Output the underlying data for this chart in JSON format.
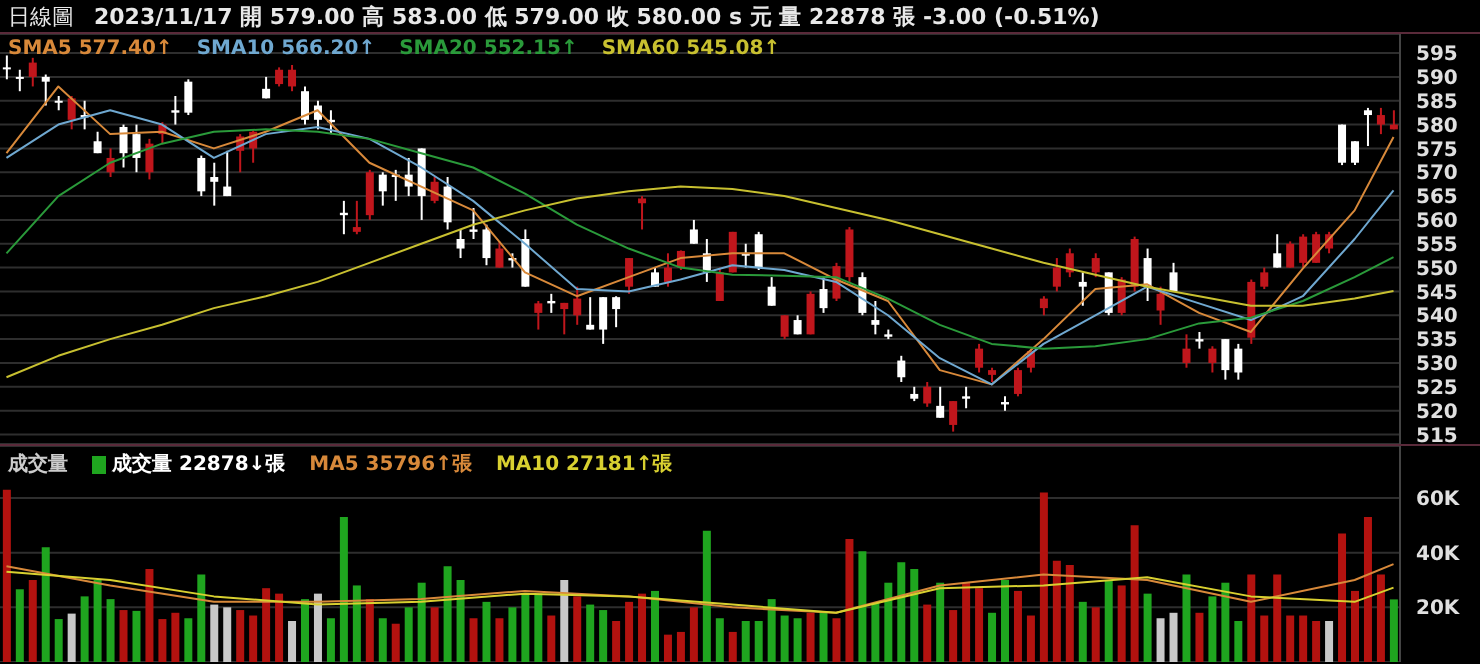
{
  "chart_data": [
    {
      "type": "candlestick",
      "title": "日線圖",
      "subtitle": "2023/11/17 開 579.00 高 583.00 低 579.00 收 580.00 s 元 量 22878 張 -3.00 (-0.51%)",
      "categories": [
        null,
        null,
        null,
        null,
        null,
        null,
        null,
        null,
        null,
        null,
        null,
        null,
        null,
        null,
        null,
        null,
        null,
        null,
        null,
        null,
        null,
        null,
        null,
        null,
        null,
        null,
        null,
        null,
        null,
        null,
        null,
        null,
        null,
        null,
        null,
        null,
        null,
        null,
        null,
        null,
        null,
        null,
        null,
        null,
        null,
        null,
        null,
        null,
        null,
        null,
        null,
        null,
        null,
        null,
        null,
        null,
        null,
        null,
        null,
        null,
        null,
        null,
        null,
        null,
        null,
        null,
        null,
        null,
        null,
        null,
        null,
        null,
        null,
        null,
        null,
        null,
        null,
        null,
        null,
        null,
        null,
        null,
        null,
        null,
        null,
        null,
        null,
        null,
        null,
        null,
        null,
        null,
        null,
        null,
        null,
        null,
        null,
        null,
        null,
        null,
        null,
        null,
        null,
        null,
        null,
        null,
        null,
        null
      ],
      "ohlc": [
        [
          592,
          594.5,
          589.5,
          592
        ],
        [
          590,
          591.5,
          587,
          590
        ],
        [
          590,
          594,
          588,
          593
        ],
        [
          590,
          590.5,
          584,
          589
        ],
        [
          585,
          586,
          583,
          585
        ],
        [
          581,
          586,
          579,
          585.5
        ],
        [
          582,
          585,
          579,
          581.5
        ],
        [
          576.5,
          578.5,
          574,
          574
        ],
        [
          570,
          575,
          569,
          573
        ],
        [
          579.5,
          580,
          571,
          574
        ],
        [
          578,
          580,
          570,
          573
        ],
        [
          570,
          577,
          568.5,
          576
        ],
        [
          578,
          580.5,
          576,
          580
        ],
        [
          583,
          586,
          580,
          582.5
        ],
        [
          589,
          589.5,
          582,
          582.5
        ],
        [
          573,
          573.5,
          565,
          566
        ],
        [
          569,
          572,
          563,
          568
        ],
        [
          567,
          574.5,
          565,
          565
        ],
        [
          574.5,
          578,
          570,
          577.5
        ],
        [
          575,
          579,
          572,
          578.5
        ],
        [
          587.5,
          590,
          585.5,
          585.5
        ],
        [
          588.5,
          592,
          588,
          591.5
        ],
        [
          588,
          592.5,
          587,
          591.5
        ],
        [
          587,
          588,
          580,
          581
        ],
        [
          584,
          585,
          579,
          581
        ],
        [
          581,
          583,
          578,
          580.5
        ],
        [
          561.5,
          564,
          557,
          561
        ],
        [
          557.5,
          564,
          557,
          558.5
        ],
        [
          561,
          570.5,
          560,
          570
        ],
        [
          569.5,
          570,
          563,
          566
        ],
        [
          569.5,
          570.5,
          564,
          569
        ],
        [
          569.5,
          573,
          565,
          567
        ],
        [
          575,
          575,
          560,
          565
        ],
        [
          564,
          569,
          563.5,
          568
        ],
        [
          567,
          569,
          558,
          559.5
        ],
        [
          556,
          558,
          552,
          554
        ],
        [
          558,
          562.5,
          556,
          557.5
        ],
        [
          558,
          559,
          550.5,
          552
        ],
        [
          550,
          555.5,
          550,
          554
        ],
        [
          552,
          553,
          550,
          551.5
        ],
        [
          556,
          558,
          546,
          546
        ],
        [
          540.5,
          543,
          537,
          542.5
        ],
        [
          543,
          544.5,
          540.5,
          542.5
        ],
        [
          541.3,
          542.6,
          536,
          542.6
        ],
        [
          540,
          546,
          538,
          543.5
        ],
        [
          538,
          543.8,
          537,
          537
        ],
        [
          543.8,
          543.8,
          534,
          537
        ],
        [
          543.8,
          544,
          537.5,
          541.3
        ],
        [
          546,
          552,
          544.5,
          552
        ],
        [
          563.5,
          565,
          558,
          564.5
        ],
        [
          549,
          550,
          546,
          546
        ],
        [
          547,
          553,
          546,
          550
        ],
        [
          550,
          553.6,
          549.5,
          553.5
        ],
        [
          558,
          560,
          555,
          555
        ],
        [
          553,
          556,
          547,
          549
        ],
        [
          543,
          550,
          543,
          549
        ],
        [
          549,
          557.5,
          549,
          557.5
        ],
        [
          553,
          555,
          550,
          552.5
        ],
        [
          557,
          557.5,
          549.5,
          550
        ],
        [
          546,
          548,
          542,
          542
        ],
        [
          535.5,
          540,
          535,
          540
        ],
        [
          539,
          540,
          536,
          536
        ],
        [
          536,
          545,
          536,
          544.5
        ],
        [
          545.5,
          548,
          540.5,
          541.5
        ],
        [
          543.5,
          551,
          543,
          550.3
        ],
        [
          548,
          558.5,
          547,
          558
        ],
        [
          548,
          549,
          540,
          540.5
        ],
        [
          539,
          543,
          536,
          538
        ],
        [
          536,
          537,
          535,
          535.5
        ],
        [
          530.5,
          531.5,
          526,
          527
        ],
        [
          523.5,
          525,
          522,
          522.5
        ],
        [
          521.5,
          526,
          520.8,
          525
        ],
        [
          521,
          525,
          518.5,
          518.5
        ],
        [
          517,
          522,
          515.6,
          522
        ],
        [
          523,
          525,
          520.5,
          522.5
        ],
        [
          529,
          534,
          528,
          533
        ],
        [
          527.5,
          529,
          526,
          528.5
        ],
        [
          521.8,
          523,
          520,
          521.3
        ],
        [
          523.5,
          529,
          523,
          528.5
        ],
        [
          529,
          533,
          528,
          532.5
        ],
        [
          541.5,
          544,
          540,
          543.5
        ],
        [
          546,
          552,
          545,
          550
        ],
        [
          549,
          554,
          548,
          553
        ],
        [
          547,
          549,
          542,
          546
        ],
        [
          549,
          553,
          548,
          552
        ],
        [
          549,
          549,
          540,
          540.5
        ],
        [
          540.5,
          548,
          540,
          547.5
        ],
        [
          546,
          556.5,
          545,
          556
        ],
        [
          552,
          554,
          543,
          546
        ],
        [
          541,
          546,
          538,
          544.5
        ],
        [
          549,
          551,
          545,
          545
        ],
        [
          530,
          536,
          529,
          533
        ],
        [
          535,
          536.5,
          533,
          534.5
        ],
        [
          530,
          533.5,
          528,
          533
        ],
        [
          535,
          535,
          526.5,
          528.5
        ],
        [
          533,
          534,
          526.5,
          528
        ],
        [
          535.3,
          547.5,
          534,
          547
        ],
        [
          546,
          550,
          545.5,
          549
        ],
        [
          553,
          557,
          550,
          550
        ],
        [
          550,
          555.5,
          550,
          555
        ],
        [
          551,
          557,
          550,
          556.5
        ],
        [
          551,
          557.5,
          551,
          557
        ],
        [
          554,
          557.5,
          553,
          557
        ],
        [
          580,
          580,
          571.5,
          572
        ],
        [
          576.5,
          576.5,
          571.5,
          572
        ],
        [
          583,
          583.5,
          575.5,
          582
        ],
        [
          580,
          583.5,
          578,
          582
        ],
        [
          579,
          583,
          579,
          580
        ]
      ],
      "colors": [
        "#ffffff",
        "#ffffff",
        "#c0161c",
        "#ffffff",
        "#ffffff",
        "#c0161c",
        "#ffffff",
        "#ffffff",
        "#c0161c",
        "#ffffff",
        "#ffffff",
        "#c0161c",
        "#c0161c",
        "#ffffff",
        "#ffffff",
        "#ffffff",
        "#ffffff",
        "#ffffff",
        "#c0161c",
        "#c0161c",
        "#ffffff",
        "#c0161c",
        "#c0161c",
        "#ffffff",
        "#ffffff",
        "#ffffff",
        "#ffffff",
        "#c0161c",
        "#c0161c",
        "#ffffff",
        "#ffffff",
        "#ffffff",
        "#ffffff",
        "#c0161c",
        "#ffffff",
        "#ffffff",
        "#ffffff",
        "#ffffff",
        "#c0161c",
        "#ffffff",
        "#ffffff",
        "#c0161c",
        "#ffffff",
        "#c0161c",
        "#c0161c",
        "#ffffff",
        "#ffffff",
        "#ffffff",
        "#c0161c",
        "#c0161c",
        "#ffffff",
        "#c0161c",
        "#c0161c",
        "#ffffff",
        "#ffffff",
        "#c0161c",
        "#c0161c",
        "#ffffff",
        "#ffffff",
        "#ffffff",
        "#c0161c",
        "#ffffff",
        "#c0161c",
        "#ffffff",
        "#c0161c",
        "#c0161c",
        "#ffffff",
        "#ffffff",
        "#ffffff",
        "#ffffff",
        "#ffffff",
        "#c0161c",
        "#ffffff",
        "#c0161c",
        "#ffffff",
        "#c0161c",
        "#c0161c",
        "#ffffff",
        "#c0161c",
        "#c0161c",
        "#c0161c",
        "#c0161c",
        "#c0161c",
        "#ffffff",
        "#c0161c",
        "#ffffff",
        "#c0161c",
        "#c0161c",
        "#ffffff",
        "#c0161c",
        "#ffffff",
        "#c0161c",
        "#ffffff",
        "#c0161c",
        "#ffffff",
        "#ffffff",
        "#c0161c",
        "#c0161c",
        "#ffffff",
        "#c0161c",
        "#c0161c",
        "#c0161c",
        "#c0161c",
        "#ffffff",
        "#ffffff",
        "#ffffff",
        "#c0161c",
        "#c0161c"
      ],
      "series": [
        {
          "type": "line",
          "name": "SMA5 577.40↑",
          "color": "#d8893a",
          "values": [
            574,
            null,
            null,
            null,
            588,
            null,
            null,
            null,
            578,
            null,
            null,
            null,
            578.5,
            null,
            null,
            null,
            575,
            null,
            null,
            null,
            578.5,
            null,
            null,
            null,
            583,
            null,
            null,
            null,
            572,
            null,
            null,
            null,
            567,
            null,
            null,
            null,
            562,
            null,
            null,
            null,
            549,
            null,
            null,
            null,
            544,
            null,
            null,
            null,
            548,
            null,
            null,
            null,
            552,
            null,
            null,
            null,
            553,
            null,
            null,
            null,
            553,
            null,
            null,
            null,
            547.5,
            null,
            null,
            null,
            543,
            null,
            null,
            null,
            528.5,
            null,
            null,
            null,
            525.5,
            null,
            null,
            null,
            535,
            null,
            null,
            null,
            545.5,
            null,
            null,
            null,
            546.5,
            null,
            null,
            null,
            540.5,
            null,
            null,
            null,
            536.5,
            null,
            null,
            null,
            549.8,
            null,
            null,
            null,
            562,
            null,
            null,
            577.4
          ]
        },
        {
          "type": "line",
          "name": "SMA10 566.20↑",
          "color": "#6fa8d0",
          "values": [
            573,
            null,
            null,
            null,
            580,
            null,
            null,
            null,
            583,
            null,
            null,
            null,
            580,
            null,
            null,
            null,
            573,
            null,
            null,
            null,
            578,
            null,
            null,
            null,
            579.5,
            null,
            null,
            null,
            577,
            null,
            null,
            null,
            571,
            null,
            null,
            null,
            564,
            null,
            null,
            null,
            555,
            null,
            null,
            null,
            545.5,
            null,
            null,
            null,
            545,
            null,
            null,
            null,
            547.5,
            null,
            null,
            null,
            550.5,
            null,
            null,
            null,
            549.5,
            null,
            null,
            null,
            547,
            null,
            null,
            null,
            540,
            null,
            null,
            null,
            531,
            null,
            null,
            null,
            525.5,
            null,
            null,
            null,
            534,
            null,
            null,
            null,
            540,
            null,
            null,
            null,
            546,
            null,
            null,
            null,
            542.5,
            null,
            null,
            null,
            539,
            null,
            null,
            null,
            544,
            null,
            null,
            null,
            556,
            null,
            null,
            566.2
          ]
        },
        {
          "type": "line",
          "name": "SMA20 552.15↑",
          "color": "#2a9a3a",
          "values": [
            553,
            null,
            null,
            null,
            565,
            null,
            null,
            null,
            572,
            null,
            null,
            null,
            576,
            null,
            null,
            null,
            578.5,
            null,
            null,
            null,
            579,
            null,
            null,
            null,
            578.5,
            null,
            null,
            null,
            577,
            null,
            null,
            null,
            574,
            null,
            null,
            null,
            571,
            null,
            null,
            null,
            565.5,
            null,
            null,
            null,
            559,
            null,
            null,
            null,
            554,
            null,
            null,
            null,
            550,
            null,
            null,
            null,
            548.5,
            null,
            null,
            null,
            548.3,
            null,
            null,
            null,
            548,
            null,
            null,
            null,
            543.5,
            null,
            null,
            null,
            538,
            null,
            null,
            null,
            534,
            null,
            null,
            null,
            533,
            null,
            null,
            null,
            533.5,
            null,
            null,
            null,
            535,
            null,
            null,
            null,
            538.3,
            null,
            null,
            null,
            539.5,
            null,
            null,
            null,
            543,
            null,
            null,
            null,
            548,
            null,
            null,
            552.2
          ]
        },
        {
          "type": "line",
          "name": "SMA60 545.08↑",
          "color": "#c8c030",
          "values": [
            527,
            null,
            null,
            null,
            531.5,
            null,
            null,
            null,
            535,
            null,
            null,
            null,
            538,
            null,
            null,
            null,
            541.5,
            null,
            null,
            null,
            544,
            null,
            null,
            null,
            547,
            null,
            null,
            null,
            551,
            null,
            null,
            null,
            555,
            null,
            null,
            null,
            559,
            null,
            null,
            null,
            562,
            null,
            null,
            null,
            564.5,
            null,
            null,
            null,
            566,
            null,
            null,
            null,
            567,
            null,
            null,
            null,
            566.5,
            null,
            null,
            null,
            565,
            null,
            null,
            null,
            562.5,
            null,
            null,
            null,
            560,
            null,
            null,
            null,
            557,
            null,
            null,
            null,
            554,
            null,
            null,
            null,
            551,
            null,
            null,
            null,
            548.5,
            null,
            null,
            null,
            546,
            null,
            null,
            null,
            544,
            null,
            null,
            null,
            542,
            null,
            null,
            null,
            542,
            null,
            null,
            null,
            543.5,
            null,
            null,
            545.1
          ]
        }
      ],
      "ylim": [
        513,
        599
      ],
      "yticks": [
        515,
        520,
        525,
        530,
        535,
        540,
        545,
        550,
        555,
        560,
        565,
        570,
        575,
        580,
        585,
        590,
        595
      ],
      "grid": "y",
      "legend": "top left",
      "tick_labels": "y"
    },
    {
      "type": "bar",
      "ylabel": "成交量",
      "categories": [
        null,
        null,
        null,
        null,
        null,
        null,
        null,
        null,
        null,
        null,
        null,
        null,
        null,
        null,
        null,
        null,
        null,
        null,
        null,
        null,
        null,
        null,
        null,
        null,
        null,
        null,
        null,
        null,
        null,
        null,
        null,
        null,
        null,
        null,
        null,
        null,
        null,
        null,
        null,
        null,
        null,
        null,
        null,
        null,
        null,
        null,
        null,
        null,
        null,
        null,
        null,
        null,
        null,
        null,
        null,
        null,
        null,
        null,
        null,
        null,
        null,
        null,
        null,
        null,
        null,
        null,
        null,
        null,
        null,
        null,
        null,
        null,
        null,
        null,
        null,
        null,
        null,
        null,
        null,
        null,
        null,
        null,
        null,
        null,
        null,
        null,
        null,
        null,
        null,
        null,
        null,
        null,
        null,
        null,
        null,
        null,
        null,
        null,
        null,
        null,
        null,
        null,
        null,
        null,
        null,
        null,
        null,
        null
      ],
      "series": [
        {
          "name": "成交量 22878↓張",
          "values": [
            63,
            26.6,
            30,
            42,
            15.7,
            17.7,
            24,
            30,
            23,
            19,
            18.7,
            34,
            15.7,
            18,
            16,
            32,
            21,
            20,
            19,
            17,
            27,
            25,
            15,
            23,
            25,
            16,
            53,
            28,
            23,
            16,
            14,
            20,
            29,
            20,
            35,
            30,
            16,
            22,
            16,
            20,
            25,
            25,
            17,
            30,
            24,
            21,
            19,
            15,
            22,
            25,
            26,
            10,
            11,
            20,
            48,
            16,
            11,
            15,
            15,
            23,
            17,
            16,
            18,
            18,
            16,
            45,
            40.5,
            21.5,
            29,
            36.5,
            34,
            21,
            29,
            19,
            29,
            27,
            18,
            30,
            26,
            17,
            62,
            37,
            35.5,
            22,
            20,
            30,
            28,
            50,
            25,
            16,
            18,
            32,
            18,
            24,
            29,
            15,
            32,
            17,
            32,
            17,
            17,
            15,
            15,
            47,
            26,
            53,
            32,
            22.9
          ],
          "colors": [
            "#b3120f",
            "#1fa51f",
            "#b3120f",
            "#1fa51f",
            "#1fa51f",
            "#c8c8c8",
            "#1fa51f",
            "#1fa51f",
            "#1fa51f",
            "#b3120f",
            "#1fa51f",
            "#b3120f",
            "#b3120f",
            "#b3120f",
            "#1fa51f",
            "#1fa51f",
            "#c8c8c8",
            "#c8c8c8",
            "#b3120f",
            "#b3120f",
            "#b3120f",
            "#b3120f",
            "#c8c8c8",
            "#1fa51f",
            "#c8c8c8",
            "#1fa51f",
            "#1fa51f",
            "#1fa51f",
            "#b3120f",
            "#1fa51f",
            "#b3120f",
            "#1fa51f",
            "#1fa51f",
            "#b3120f",
            "#1fa51f",
            "#1fa51f",
            "#b3120f",
            "#1fa51f",
            "#b3120f",
            "#1fa51f",
            "#1fa51f",
            "#1fa51f",
            "#b3120f",
            "#c8c8c8",
            "#b3120f",
            "#1fa51f",
            "#1fa51f",
            "#b3120f",
            "#b3120f",
            "#b3120f",
            "#1fa51f",
            "#b3120f",
            "#b3120f",
            "#b3120f",
            "#1fa51f",
            "#1fa51f",
            "#b3120f",
            "#1fa51f",
            "#1fa51f",
            "#1fa51f",
            "#1fa51f",
            "#1fa51f",
            "#b3120f",
            "#1fa51f",
            "#b3120f",
            "#b3120f",
            "#1fa51f",
            "#1fa51f",
            "#1fa51f",
            "#1fa51f",
            "#1fa51f",
            "#b3120f",
            "#1fa51f",
            "#b3120f",
            "#b3120f",
            "#b3120f",
            "#1fa51f",
            "#1fa51f",
            "#b3120f",
            "#b3120f",
            "#b3120f",
            "#b3120f",
            "#b3120f",
            "#1fa51f",
            "#b3120f",
            "#1fa51f",
            "#b3120f",
            "#b3120f",
            "#1fa51f",
            "#c8c8c8",
            "#c8c8c8",
            "#1fa51f",
            "#b3120f",
            "#1fa51f",
            "#1fa51f",
            "#1fa51f",
            "#b3120f",
            "#b3120f",
            "#b3120f",
            "#b3120f",
            "#b3120f",
            "#b3120f",
            "#c8c8c8",
            "#b3120f",
            "#b3120f",
            "#b3120f",
            "#b3120f",
            "#1fa51f"
          ]
        },
        {
          "type": "line",
          "name": "MA5 35796↑張",
          "color": "#d8893a",
          "values": [
            35,
            null,
            null,
            null,
            null,
            null,
            null,
            null,
            28,
            null,
            null,
            null,
            null,
            null,
            null,
            null,
            22,
            null,
            null,
            null,
            null,
            null,
            null,
            null,
            22,
            null,
            null,
            null,
            null,
            null,
            null,
            null,
            23,
            null,
            null,
            null,
            null,
            null,
            null,
            null,
            26,
            null,
            null,
            null,
            null,
            null,
            null,
            null,
            24,
            null,
            null,
            null,
            null,
            null,
            null,
            null,
            20,
            null,
            null,
            null,
            null,
            null,
            null,
            null,
            18,
            null,
            null,
            null,
            null,
            null,
            null,
            null,
            28,
            null,
            null,
            null,
            null,
            null,
            null,
            null,
            32,
            null,
            null,
            null,
            null,
            null,
            null,
            null,
            30,
            null,
            null,
            null,
            null,
            null,
            null,
            null,
            22,
            null,
            null,
            null,
            null,
            null,
            null,
            null,
            30,
            null,
            null,
            35.8
          ]
        },
        {
          "type": "line",
          "name": "MA10 27181↑張",
          "color": "#d8d030",
          "values": [
            33,
            null,
            null,
            null,
            null,
            null,
            null,
            null,
            30,
            null,
            null,
            null,
            null,
            null,
            null,
            null,
            24,
            null,
            null,
            null,
            null,
            null,
            null,
            null,
            21,
            null,
            null,
            null,
            null,
            null,
            null,
            null,
            22,
            null,
            null,
            null,
            null,
            null,
            null,
            null,
            25,
            null,
            null,
            null,
            null,
            null,
            null,
            null,
            24,
            null,
            null,
            null,
            null,
            null,
            null,
            null,
            21,
            null,
            null,
            null,
            null,
            null,
            null,
            null,
            18,
            null,
            null,
            null,
            null,
            null,
            null,
            null,
            27,
            null,
            null,
            null,
            null,
            null,
            null,
            null,
            28,
            null,
            null,
            null,
            null,
            null,
            null,
            null,
            31,
            null,
            null,
            null,
            null,
            null,
            null,
            null,
            24,
            null,
            null,
            null,
            null,
            null,
            null,
            null,
            22,
            null,
            null,
            27.2
          ]
        }
      ],
      "ylim": [
        0,
        79
      ],
      "yticks": [
        {
          "value": 20,
          "label": "20K"
        },
        {
          "value": 40,
          "label": "40K"
        },
        {
          "value": 60,
          "label": "60K"
        }
      ],
      "grid": "y",
      "legend": "top left",
      "tick_labels": "y"
    }
  ]
}
